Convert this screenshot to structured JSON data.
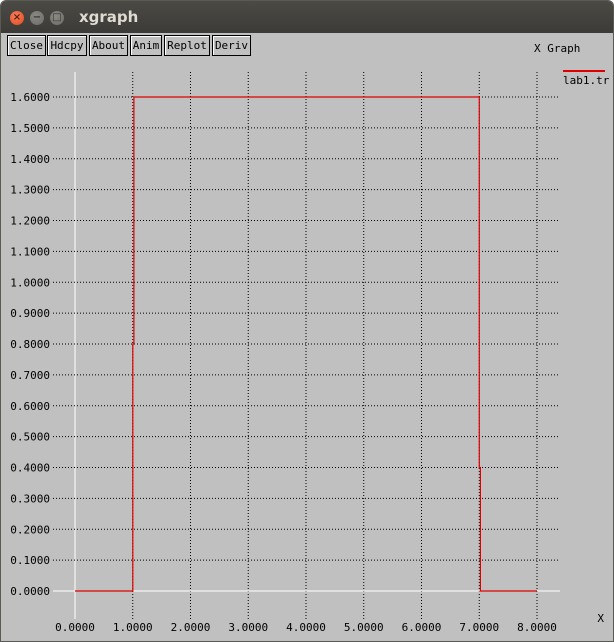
{
  "window": {
    "title": "xgraph"
  },
  "toolbar": {
    "buttons": [
      "Close",
      "Hdcpy",
      "About",
      "Anim",
      "Replot",
      "Deriv"
    ]
  },
  "colors": {
    "background": "#c0c0c0",
    "titlebar": "#3c3b37",
    "series": "#e00000",
    "axis": "#ffffff",
    "grid": "#000000"
  },
  "chart_data": {
    "type": "line",
    "title": "X Graph",
    "xlabel": "X",
    "ylabel": "",
    "xlim": [
      0,
      8
    ],
    "ylim": [
      0,
      1.6
    ],
    "grid": true,
    "legend_position": "right",
    "x_ticks": [
      "0.0000",
      "1.0000",
      "2.0000",
      "3.0000",
      "4.0000",
      "5.0000",
      "6.0000",
      "7.0000",
      "8.0000"
    ],
    "y_ticks": [
      "0.0000",
      "0.1000",
      "0.2000",
      "0.3000",
      "0.4000",
      "0.5000",
      "0.6000",
      "0.7000",
      "0.8000",
      "0.9000",
      "1.0000",
      "1.1000",
      "1.2000",
      "1.3000",
      "1.4000",
      "1.5000",
      "1.6000"
    ],
    "series": [
      {
        "name": "lab1.tr",
        "color": "#e00000",
        "points": [
          [
            0,
            0
          ],
          [
            1.0,
            0
          ],
          [
            1.0,
            0.8
          ],
          [
            1.02,
            0.8
          ],
          [
            1.02,
            1.6
          ],
          [
            7.0,
            1.6
          ],
          [
            7.0,
            0.4
          ],
          [
            7.02,
            0.4
          ],
          [
            7.02,
            0
          ],
          [
            8.0,
            0
          ]
        ]
      }
    ]
  }
}
